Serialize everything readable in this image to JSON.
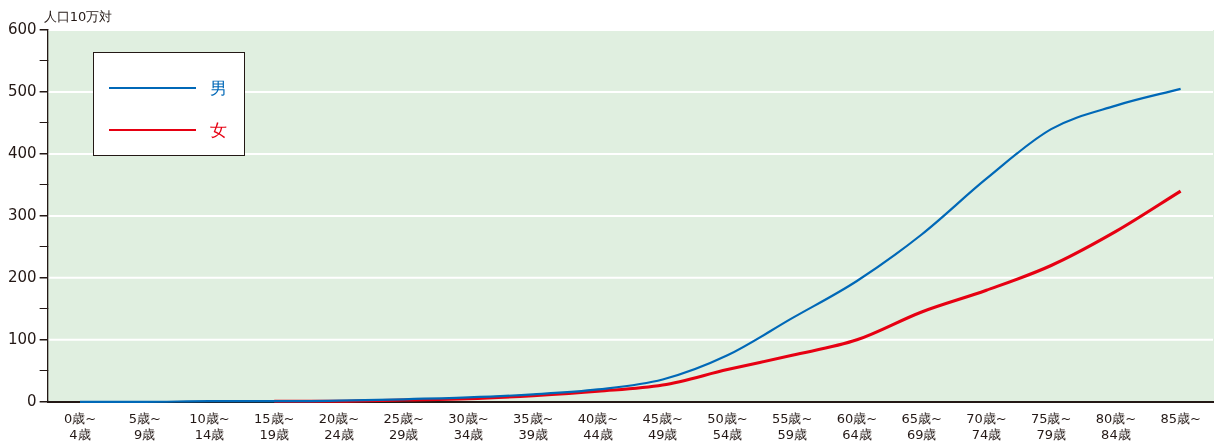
{
  "chart_data": {
    "type": "line",
    "ylabel": "人口10万対",
    "categories": [
      "0歳~\n4歳",
      "5歳~\n9歳",
      "10歳~\n14歳",
      "15歳~\n19歳",
      "20歳~\n24歳",
      "25歳~\n29歳",
      "30歳~\n34歳",
      "35歳~\n39歳",
      "40歳~\n44歳",
      "45歳~\n49歳",
      "50歳~\n54歳",
      "55歳~\n59歳",
      "60歳~\n64歳",
      "65歳~\n69歳",
      "70歳~\n74歳",
      "75歳~\n79歳",
      "80歳~\n84歳",
      "85歳~"
    ],
    "series": [
      {
        "name": "男",
        "color": "#0068b7",
        "values": [
          0,
          0,
          1,
          1,
          2,
          4,
          7,
          12,
          20,
          36,
          75,
          135,
          195,
          270,
          360,
          440,
          478,
          505
        ]
      },
      {
        "name": "女",
        "color": "#e60012",
        "values": [
          null,
          null,
          null,
          1,
          1,
          3,
          5,
          10,
          17,
          27,
          52,
          75,
          100,
          145,
          180,
          220,
          275,
          340
        ]
      }
    ],
    "ylim": [
      0,
      600
    ],
    "yticks": [
      0,
      {
        "value": 50,
        "label": null
      },
      100,
      {
        "value": 150,
        "label": null
      },
      200,
      {
        "value": 250,
        "label": null
      },
      300,
      {
        "value": 350,
        "label": null
      },
      400,
      {
        "value": 450,
        "label": null
      },
      500,
      {
        "value": 550,
        "label": null
      },
      600
    ],
    "grid": "y",
    "legend": "top left",
    "marker": "none",
    "line_style": "solid"
  }
}
